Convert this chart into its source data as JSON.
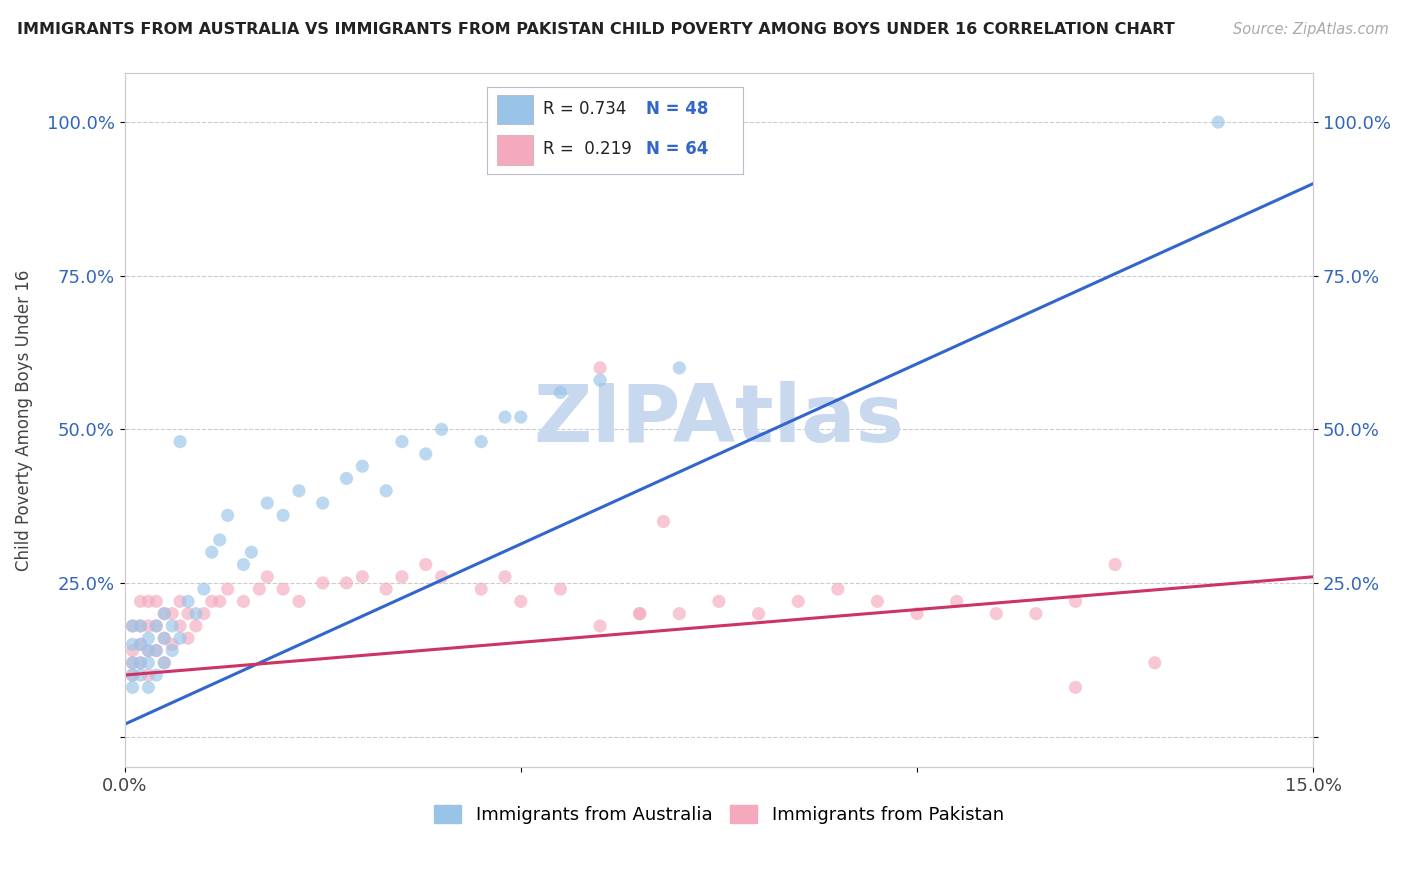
{
  "title": "IMMIGRANTS FROM AUSTRALIA VS IMMIGRANTS FROM PAKISTAN CHILD POVERTY AMONG BOYS UNDER 16 CORRELATION CHART",
  "source": "Source: ZipAtlas.com",
  "ylabel": "Child Poverty Among Boys Under 16",
  "xlim": [
    0,
    0.15
  ],
  "ylim": [
    -0.05,
    1.08
  ],
  "australia_color": "#99c4e8",
  "pakistan_color": "#f4aabc",
  "australia_line_color": "#3366cc",
  "pakistan_line_color": "#cc3366",
  "legend_text_color": "#3366cc",
  "watermark_color": "#c8d8ee",
  "background_color": "#ffffff",
  "grid_color": "#cccccc",
  "title_color": "#222222",
  "tick_color": "#3366bb",
  "australia_x": [
    0.001,
    0.001,
    0.001,
    0.001,
    0.001,
    0.002,
    0.002,
    0.002,
    0.002,
    0.003,
    0.003,
    0.003,
    0.003,
    0.004,
    0.004,
    0.004,
    0.005,
    0.005,
    0.005,
    0.006,
    0.006,
    0.007,
    0.007,
    0.008,
    0.009,
    0.01,
    0.011,
    0.012,
    0.013,
    0.015,
    0.016,
    0.018,
    0.02,
    0.022,
    0.025,
    0.028,
    0.03,
    0.033,
    0.035,
    0.038,
    0.04,
    0.045,
    0.048,
    0.05,
    0.055,
    0.06,
    0.07,
    0.138
  ],
  "australia_y": [
    0.08,
    0.1,
    0.12,
    0.15,
    0.18,
    0.1,
    0.12,
    0.15,
    0.18,
    0.08,
    0.12,
    0.14,
    0.16,
    0.1,
    0.14,
    0.18,
    0.12,
    0.16,
    0.2,
    0.14,
    0.18,
    0.16,
    0.48,
    0.22,
    0.2,
    0.24,
    0.3,
    0.32,
    0.36,
    0.28,
    0.3,
    0.38,
    0.36,
    0.4,
    0.38,
    0.42,
    0.44,
    0.4,
    0.48,
    0.46,
    0.5,
    0.48,
    0.52,
    0.52,
    0.56,
    0.58,
    0.6,
    1.0
  ],
  "pakistan_x": [
    0.001,
    0.001,
    0.001,
    0.001,
    0.002,
    0.002,
    0.002,
    0.002,
    0.003,
    0.003,
    0.003,
    0.003,
    0.004,
    0.004,
    0.004,
    0.005,
    0.005,
    0.005,
    0.006,
    0.006,
    0.007,
    0.007,
    0.008,
    0.008,
    0.009,
    0.01,
    0.011,
    0.012,
    0.013,
    0.015,
    0.017,
    0.018,
    0.02,
    0.022,
    0.025,
    0.028,
    0.03,
    0.033,
    0.035,
    0.038,
    0.04,
    0.045,
    0.048,
    0.05,
    0.055,
    0.06,
    0.065,
    0.068,
    0.07,
    0.075,
    0.08,
    0.085,
    0.09,
    0.095,
    0.1,
    0.105,
    0.11,
    0.115,
    0.12,
    0.125,
    0.06,
    0.065,
    0.12,
    0.13
  ],
  "pakistan_y": [
    0.1,
    0.12,
    0.14,
    0.18,
    0.12,
    0.15,
    0.18,
    0.22,
    0.1,
    0.14,
    0.18,
    0.22,
    0.14,
    0.18,
    0.22,
    0.12,
    0.16,
    0.2,
    0.15,
    0.2,
    0.18,
    0.22,
    0.16,
    0.2,
    0.18,
    0.2,
    0.22,
    0.22,
    0.24,
    0.22,
    0.24,
    0.26,
    0.24,
    0.22,
    0.25,
    0.25,
    0.26,
    0.24,
    0.26,
    0.28,
    0.26,
    0.24,
    0.26,
    0.22,
    0.24,
    0.18,
    0.2,
    0.35,
    0.2,
    0.22,
    0.2,
    0.22,
    0.24,
    0.22,
    0.2,
    0.22,
    0.2,
    0.2,
    0.22,
    0.28,
    0.6,
    0.2,
    0.08,
    0.12
  ],
  "trend_aus_x0": 0.0,
  "trend_aus_y0": 0.02,
  "trend_aus_x1": 0.15,
  "trend_aus_y1": 0.9,
  "trend_pak_x0": 0.0,
  "trend_pak_y0": 0.1,
  "trend_pak_x1": 0.15,
  "trend_pak_y1": 0.26
}
